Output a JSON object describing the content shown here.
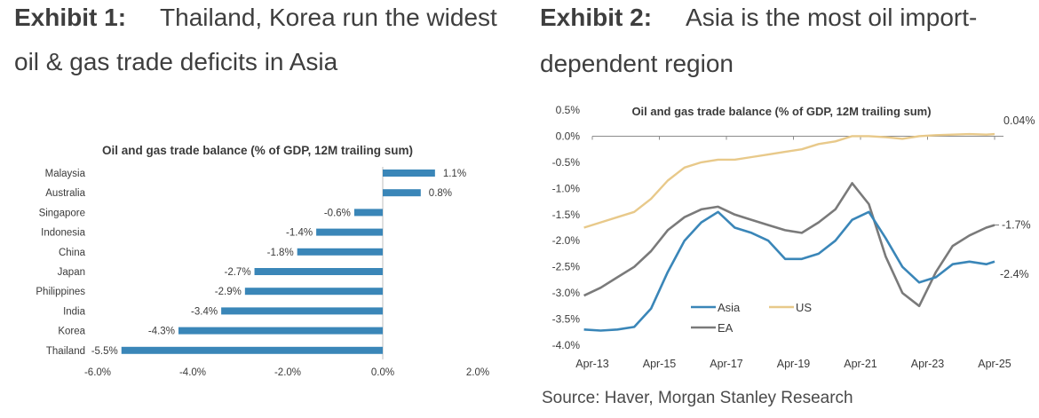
{
  "exhibit1": {
    "label": "Exhibit 1:",
    "title_line1": "Thailand, Korea run the widest",
    "title_line2": "oil & gas trade deficits in  Asia"
  },
  "exhibit2": {
    "label": "Exhibit 2:",
    "title_line1": "Asia is the most oil import-",
    "title_line2": "dependent region"
  },
  "source": "Source: Haver, Morgan Stanley Research",
  "colors": {
    "asia": "#3a86b8",
    "us": "#e8c98a",
    "ea": "#7a7a7a",
    "bar": "#3a86b8",
    "axis": "#bfbfbf",
    "text": "#3a3a3a"
  },
  "chart_data": [
    {
      "type": "bar",
      "orientation": "horizontal",
      "title": "Oil and gas trade balance (% of GDP, 12M trailing sum)",
      "categories": [
        "Malaysia",
        "Australia",
        "Singapore",
        "Indonesia",
        "China",
        "Japan",
        "Philippines",
        "India",
        "Korea",
        "Thailand"
      ],
      "values": [
        1.1,
        0.8,
        -0.6,
        -1.4,
        -1.8,
        -2.7,
        -2.9,
        -3.4,
        -4.3,
        -5.5
      ],
      "value_labels": [
        "1.1%",
        "0.8%",
        "-0.6%",
        "-1.4%",
        "-1.8%",
        "-2.7%",
        "-2.9%",
        "-3.4%",
        "-4.3%",
        "-5.5%"
      ],
      "xlim": [
        -6,
        2
      ],
      "xticks": [
        -6,
        -4,
        -2,
        0,
        2
      ],
      "xtick_labels": [
        "-6.0%",
        "-4.0%",
        "-2.0%",
        "0.0%",
        "2.0%"
      ]
    },
    {
      "type": "line",
      "title": "Oil and gas trade balance (% of GDP, 12M trailing sum)",
      "ylim": [
        -4.0,
        0.5
      ],
      "yticks": [
        0.5,
        0.0,
        -0.5,
        -1.0,
        -1.5,
        -2.0,
        -2.5,
        -3.0,
        -3.5,
        -4.0
      ],
      "ytick_labels": [
        "0.5%",
        "0.0%",
        "-0.5%",
        "-1.0%",
        "-1.5%",
        "-2.0%",
        "-2.5%",
        "-3.0%",
        "-3.5%",
        "-4.0%"
      ],
      "xlim": [
        2013.25,
        2025.25
      ],
      "xticks": [
        2013.25,
        2015.25,
        2017.25,
        2019.25,
        2021.25,
        2023.25,
        2025.25
      ],
      "xtick_labels": [
        "Apr-13",
        "Apr-15",
        "Apr-17",
        "Apr-19",
        "Apr-21",
        "Apr-23",
        "Apr-25"
      ],
      "legend": [
        "Asia",
        "US",
        "EA"
      ],
      "end_labels": {
        "us": "0.04%",
        "ea": "-1.7%",
        "asia": "-2.4%"
      },
      "series": [
        {
          "name": "Asia",
          "x": [
            2013.0,
            2013.5,
            2014.0,
            2014.5,
            2015.0,
            2015.5,
            2016.0,
            2016.5,
            2017.0,
            2017.5,
            2018.0,
            2018.5,
            2019.0,
            2019.5,
            2020.0,
            2020.5,
            2021.0,
            2021.5,
            2022.0,
            2022.5,
            2023.0,
            2023.5,
            2024.0,
            2024.5,
            2025.0,
            2025.25
          ],
          "y": [
            -3.7,
            -3.72,
            -3.7,
            -3.65,
            -3.3,
            -2.6,
            -2.0,
            -1.65,
            -1.45,
            -1.75,
            -1.85,
            -2.0,
            -2.35,
            -2.35,
            -2.25,
            -2.0,
            -1.6,
            -1.45,
            -1.95,
            -2.5,
            -2.8,
            -2.7,
            -2.45,
            -2.4,
            -2.45,
            -2.4
          ]
        },
        {
          "name": "US",
          "x": [
            2013.0,
            2013.5,
            2014.0,
            2014.5,
            2015.0,
            2015.5,
            2016.0,
            2016.5,
            2017.0,
            2017.5,
            2018.0,
            2018.5,
            2019.0,
            2019.5,
            2020.0,
            2020.5,
            2021.0,
            2021.5,
            2022.0,
            2022.5,
            2023.0,
            2023.5,
            2024.0,
            2024.5,
            2025.0,
            2025.25
          ],
          "y": [
            -1.75,
            -1.65,
            -1.55,
            -1.45,
            -1.2,
            -0.85,
            -0.6,
            -0.5,
            -0.45,
            -0.45,
            -0.4,
            -0.35,
            -0.3,
            -0.25,
            -0.15,
            -0.1,
            0.0,
            0.0,
            -0.02,
            -0.05,
            0.0,
            0.02,
            0.03,
            0.04,
            0.03,
            0.04
          ]
        },
        {
          "name": "EA",
          "x": [
            2013.0,
            2013.5,
            2014.0,
            2014.5,
            2015.0,
            2015.5,
            2016.0,
            2016.5,
            2017.0,
            2017.5,
            2018.0,
            2018.5,
            2019.0,
            2019.5,
            2020.0,
            2020.5,
            2021.0,
            2021.5,
            2022.0,
            2022.5,
            2023.0,
            2023.5,
            2024.0,
            2024.5,
            2025.0,
            2025.25
          ],
          "y": [
            -3.05,
            -2.9,
            -2.7,
            -2.5,
            -2.2,
            -1.8,
            -1.55,
            -1.4,
            -1.35,
            -1.5,
            -1.6,
            -1.7,
            -1.8,
            -1.85,
            -1.65,
            -1.4,
            -0.9,
            -1.3,
            -2.3,
            -3.0,
            -3.25,
            -2.6,
            -2.1,
            -1.9,
            -1.75,
            -1.7
          ]
        }
      ]
    }
  ]
}
